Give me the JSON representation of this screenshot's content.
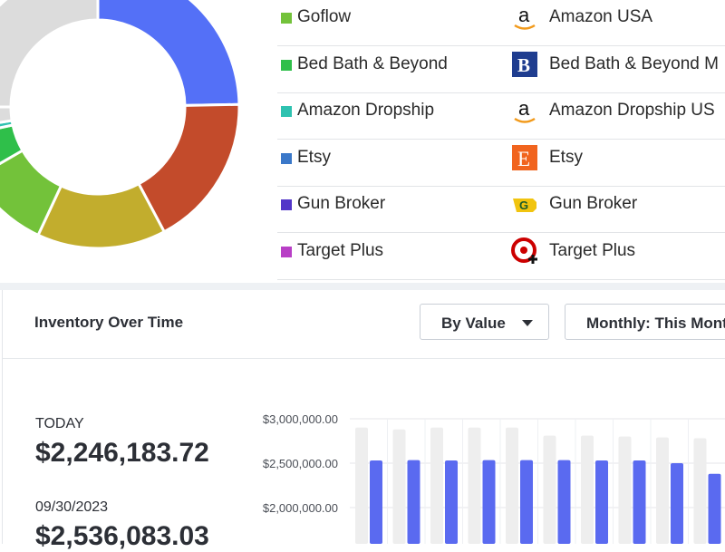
{
  "legend": {
    "items": [
      {
        "label": "Goflow",
        "swatch": "#73c23a",
        "store": "Amazon USA",
        "logo": "amazon-logo-icon"
      },
      {
        "label": "Bed Bath & Beyond",
        "swatch": "#2fbf4a",
        "store": "Bed Bath & Beyond M",
        "logo": "bed-bath-beyond-logo-icon"
      },
      {
        "label": "Amazon Dropship",
        "swatch": "#2ec2b0",
        "store": "Amazon Dropship US",
        "logo": "amazon-logo-icon"
      },
      {
        "label": "Etsy",
        "swatch": "#3a78c9",
        "store": "Etsy",
        "logo": "etsy-logo-icon"
      },
      {
        "label": "Gun Broker",
        "swatch": "#5236c8",
        "store": "Gun Broker",
        "logo": "gunbroker-logo-icon"
      },
      {
        "label": "Target Plus",
        "swatch": "#b83fc6",
        "store": "Target Plus",
        "logo": "target-plus-logo-icon"
      }
    ]
  },
  "donut_colors": {
    "blue": "#5470f7",
    "red": "#c34b2b",
    "olive": "#c2ad2d",
    "lime": "#73c23a",
    "green": "#2fbf4a",
    "teal": "#2ec2b0",
    "gray": "#dcdcdc"
  },
  "inventory": {
    "title": "Inventory Over Time",
    "by_value_label": "By Value",
    "period_label": "Monthly: This Month",
    "today_label": "TODAY",
    "today_value": "$2,246,183.72",
    "prev_date": "09/30/2023",
    "prev_value": "$2,536,083.03"
  },
  "chart_data": {
    "type": "bar",
    "yticks": [
      "$3,000,000.00",
      "$2,500,000.00",
      "$2,000,000.00"
    ],
    "ylim": [
      1500000,
      3000000
    ],
    "series": [
      {
        "color": "#eeeeee",
        "values": [
          2900000,
          2880000,
          2900000,
          2900000,
          2900000,
          2810000,
          2810000,
          2800000,
          2790000,
          2780000
        ]
      },
      {
        "color": "#5a6af0",
        "values": [
          2530000,
          2535000,
          2530000,
          2535000,
          2535000,
          2535000,
          2530000,
          2530000,
          2500000,
          2380000
        ]
      }
    ]
  }
}
